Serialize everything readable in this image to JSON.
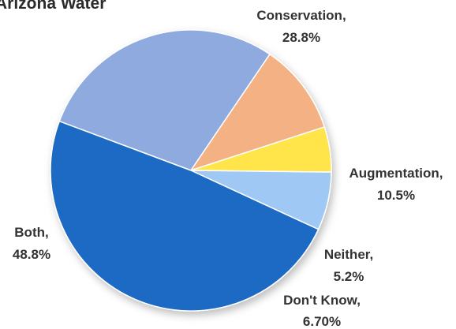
{
  "chart_data": {
    "type": "pie",
    "title": "Arizona Water",
    "slices": [
      {
        "label": "Conservation,",
        "value_label": "28.8%",
        "value": 28.8,
        "color": "#8eaadf"
      },
      {
        "label": "Augmentation,",
        "value_label": "10.5%",
        "value": 10.5,
        "color": "#f4b183"
      },
      {
        "label": "Neither,",
        "value_label": "5.2%",
        "value": 5.2,
        "color": "#ffe54a"
      },
      {
        "label": "Don't Know,",
        "value_label": "6.70%",
        "value": 6.7,
        "color": "#9fc8f5"
      },
      {
        "label": "Both,",
        "value_label": "48.8%",
        "value": 48.8,
        "color": "#1f6bc4"
      }
    ]
  }
}
